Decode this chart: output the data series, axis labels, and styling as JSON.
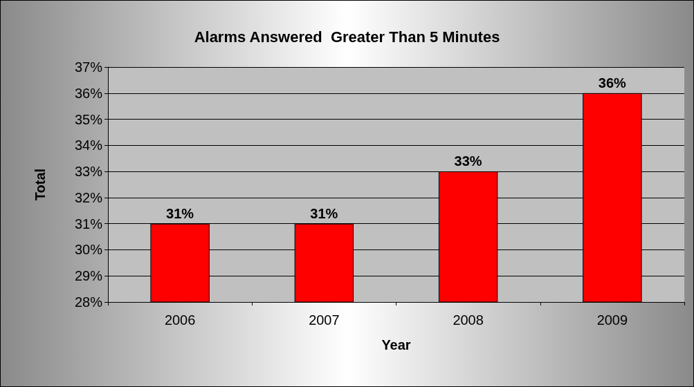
{
  "chart_data": {
    "type": "bar",
    "title": "Alarms Answered  Greater Than 5 Minutes",
    "xlabel": "Year",
    "ylabel": "Total",
    "categories": [
      "2006",
      "2007",
      "2008",
      "2009"
    ],
    "values": [
      31,
      31,
      33,
      36
    ],
    "value_labels": [
      "31%",
      "31%",
      "33%",
      "36%"
    ],
    "color": "#ff0000",
    "ylim": [
      28,
      37
    ],
    "yticks": [
      {
        "value": 28,
        "label": "28%"
      },
      {
        "value": 29,
        "label": "29%"
      },
      {
        "value": 30,
        "label": "30%"
      },
      {
        "value": 31,
        "label": "31%"
      },
      {
        "value": 32,
        "label": "32%"
      },
      {
        "value": 33,
        "label": "33%"
      },
      {
        "value": 34,
        "label": "34%"
      },
      {
        "value": 35,
        "label": "35%"
      },
      {
        "value": 36,
        "label": "36%"
      },
      {
        "value": 37,
        "label": "37%"
      }
    ],
    "grid": "y"
  }
}
